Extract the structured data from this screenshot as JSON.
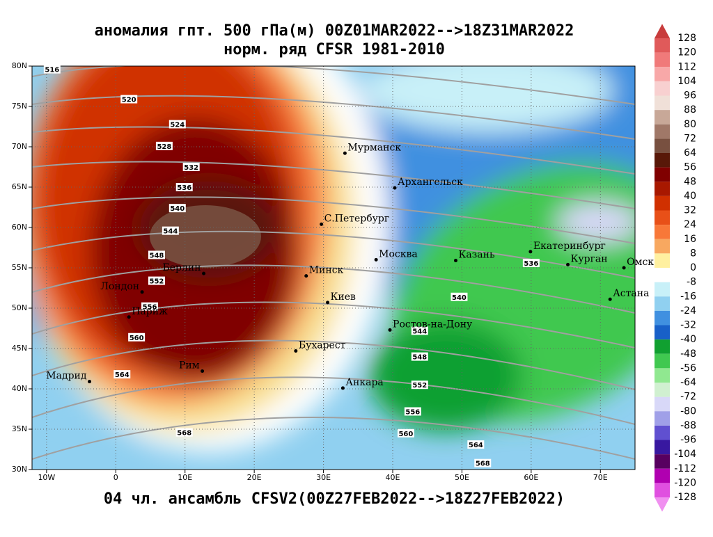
{
  "header": {
    "title": "аномалия гпт. 500 гПа(м) 00Z01MAR2022-->18Z31MAR2022",
    "subtitle": "норм. ряд CFSR 1981-2010"
  },
  "footer": "04 чл. ансамбль CFSV2(00Z27FEB2022-->18Z27FEB2022)",
  "map": {
    "lonlim": [
      -12.1,
      75
    ],
    "latlim": [
      30,
      80
    ],
    "lon_ticks": [
      {
        "value": -10,
        "label": "10W"
      },
      0,
      {
        "value": 10,
        "label": "10E"
      },
      {
        "value": 20,
        "label": "20E"
      },
      {
        "value": 30,
        "label": "30E"
      },
      {
        "value": 40,
        "label": "40E"
      },
      {
        "value": 50,
        "label": "50E"
      },
      {
        "value": 60,
        "label": "60E"
      },
      {
        "value": 70,
        "label": "70E"
      }
    ],
    "lat_ticks": [
      {
        "value": 30,
        "label": "30N"
      },
      {
        "value": 35,
        "label": "35N"
      },
      {
        "value": 40,
        "label": "40N"
      },
      {
        "value": 45,
        "label": "45N"
      },
      {
        "value": 50,
        "label": "50N"
      },
      {
        "value": 55,
        "label": "55N"
      },
      {
        "value": 60,
        "label": "60N"
      },
      {
        "value": 65,
        "label": "65N"
      },
      {
        "value": 70,
        "label": "70N"
      },
      {
        "value": 75,
        "label": "75N"
      },
      {
        "value": 80,
        "label": "80N"
      }
    ],
    "cities": [
      {
        "name": "Мурманск",
        "lon": 33.1,
        "lat": 69.2
      },
      {
        "name": "Архангельск",
        "lon": 40.3,
        "lat": 64.9
      },
      {
        "name": "С.Петербург",
        "lon": 29.7,
        "lat": 60.4
      },
      {
        "name": "Москва",
        "lon": 37.6,
        "lat": 56.0
      },
      {
        "name": "Казань",
        "lon": 49.1,
        "lat": 55.9
      },
      {
        "name": "Екатеринбург",
        "lon": 59.9,
        "lat": 57.0
      },
      {
        "name": "Курган",
        "lon": 65.3,
        "lat": 55.4
      },
      {
        "name": "Омск",
        "lon": 73.4,
        "lat": 55.0
      },
      {
        "name": "Астана",
        "lon": 71.4,
        "lat": 51.1
      },
      {
        "name": "Минск",
        "lon": 27.5,
        "lat": 54.0
      },
      {
        "name": "Киев",
        "lon": 30.6,
        "lat": 50.7
      },
      {
        "name": "Берлин",
        "lon": 12.7,
        "lat": 54.3
      },
      {
        "name": "Лондон",
        "lon": 3.8,
        "lat": 52.0
      },
      {
        "name": "Париж",
        "lon": 1.9,
        "lat": 48.9
      },
      {
        "name": "Ростов-на-Дону",
        "lon": 39.6,
        "lat": 47.3
      },
      {
        "name": "Бухарест",
        "lon": 26.0,
        "lat": 44.7
      },
      {
        "name": "Анкара",
        "lon": 32.8,
        "lat": 40.1
      },
      {
        "name": "Мадрид",
        "lon": -3.8,
        "lat": 40.9
      },
      {
        "name": "Рим",
        "lon": 12.5,
        "lat": 42.2
      }
    ],
    "contour_labels": [
      {
        "value": 516,
        "lon": -9.2,
        "lat": 79.6
      },
      {
        "value": 520,
        "lon": 1.9,
        "lat": 75.9
      },
      {
        "value": 524,
        "lon": 8.9,
        "lat": 72.8
      },
      {
        "value": 528,
        "lon": 7.0,
        "lat": 70.1
      },
      {
        "value": 532,
        "lon": 10.9,
        "lat": 67.5
      },
      {
        "value": 536,
        "lon": 9.9,
        "lat": 65.0
      },
      {
        "value": 540,
        "lon": 8.9,
        "lat": 62.4
      },
      {
        "value": 544,
        "lon": 7.9,
        "lat": 59.6
      },
      {
        "value": 548,
        "lon": 5.9,
        "lat": 56.6
      },
      {
        "value": 552,
        "lon": 5.9,
        "lat": 53.4
      },
      {
        "value": 556,
        "lon": 4.9,
        "lat": 50.2
      },
      {
        "value": 560,
        "lon": 3.0,
        "lat": 46.4
      },
      {
        "value": 564,
        "lon": 0.9,
        "lat": 41.8
      },
      {
        "value": 568,
        "lon": 9.9,
        "lat": 34.6
      },
      {
        "value": 536,
        "lon": 60.0,
        "lat": 55.6
      },
      {
        "value": 540,
        "lon": 49.6,
        "lat": 51.4
      },
      {
        "value": 544,
        "lon": 43.9,
        "lat": 47.2
      },
      {
        "value": 548,
        "lon": 43.9,
        "lat": 44.0
      },
      {
        "value": 552,
        "lon": 43.9,
        "lat": 40.5
      },
      {
        "value": 556,
        "lon": 42.9,
        "lat": 37.2
      },
      {
        "value": 560,
        "lon": 41.9,
        "lat": 34.5
      },
      {
        "value": 564,
        "lon": 52.0,
        "lat": 33.1
      },
      {
        "value": 568,
        "lon": 53.0,
        "lat": 30.8
      }
    ]
  },
  "colorbar": {
    "levels": [
      128,
      120,
      112,
      104,
      96,
      88,
      80,
      72,
      64,
      56,
      48,
      40,
      32,
      24,
      16,
      8,
      0,
      -8,
      -16,
      -24,
      -32,
      -40,
      -48,
      -56,
      -64,
      -72,
      -80,
      -88,
      -96,
      -104,
      -112,
      -120,
      -128
    ],
    "colors": [
      "#c83c3c",
      "#e05a5a",
      "#f07a7a",
      "#f8a8a8",
      "#f8d0d0",
      "#f0e0d8",
      "#c8a898",
      "#a07868",
      "#785040",
      "#581808",
      "#800000",
      "#a81800",
      "#d03000",
      "#e85018",
      "#f87838",
      "#f8a860",
      "#fff0a0",
      "#ffffff",
      "#c8f0f8",
      "#90d0f0",
      "#4090e0",
      "#1860c8",
      "#10a030",
      "#40c850",
      "#90e890",
      "#d0f0d0",
      "#d8d8f8",
      "#a0a0e8",
      "#6050d0",
      "#3818a0",
      "#580060",
      "#b000b0",
      "#e050e0",
      "#f090f0"
    ]
  }
}
